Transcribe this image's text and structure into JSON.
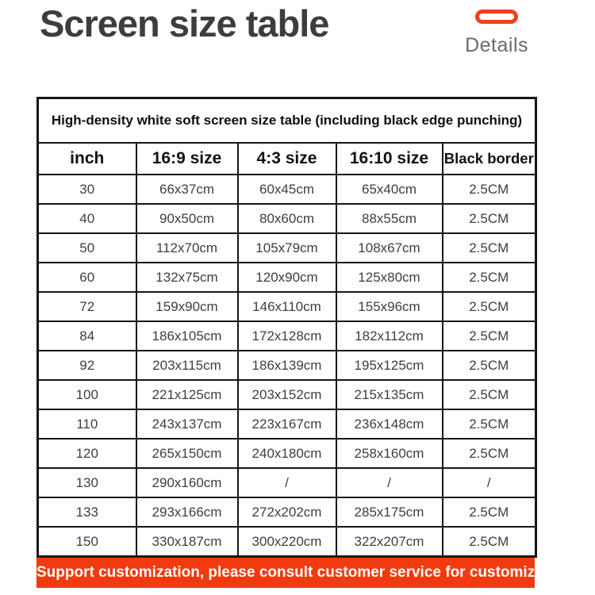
{
  "page": {
    "title": "Screen size table",
    "details_label": "Details"
  },
  "table": {
    "caption": "High-density white soft screen size table (including black edge punching)",
    "columns": [
      "inch",
      "16:9 size",
      "4:3 size",
      "16:10 size",
      "Black border"
    ],
    "rows": [
      [
        "30",
        "66x37cm",
        "60x45cm",
        "65x40cm",
        "2.5CM"
      ],
      [
        "40",
        "90x50cm",
        "80x60cm",
        "88x55cm",
        "2.5CM"
      ],
      [
        "50",
        "112x70cm",
        "105x79cm",
        "108x67cm",
        "2.5CM"
      ],
      [
        "60",
        "132x75cm",
        "120x90cm",
        "125x80cm",
        "2.5CM"
      ],
      [
        "72",
        "159x90cm",
        "146x110cm",
        "155x96cm",
        "2.5CM"
      ],
      [
        "84",
        "186x105cm",
        "172x128cm",
        "182x112cm",
        "2.5CM"
      ],
      [
        "92",
        "203x115cm",
        "186x139cm",
        "195x125cm",
        "2.5CM"
      ],
      [
        "100",
        "221x125cm",
        "203x152cm",
        "215x135cm",
        "2.5CM"
      ],
      [
        "110",
        "243x137cm",
        "223x167cm",
        "236x148cm",
        "2.5CM"
      ],
      [
        "120",
        "265x150cm",
        "240x180cm",
        "258x160cm",
        "2.5CM"
      ],
      [
        "130",
        "290x160cm",
        "/",
        "/",
        "/"
      ],
      [
        "133",
        "293x166cm",
        "272x202cm",
        "285x175cm",
        "2.5CM"
      ],
      [
        "150",
        "330x187cm",
        "300x220cm",
        "322x207cm",
        "2.5CM"
      ]
    ]
  },
  "banner": {
    "text": "Support customization, please consult customer service for customized size"
  },
  "colors": {
    "accent_orange_banner": "#f13a0f",
    "accent_orange_pill": "#ea431d",
    "title_gray": "#3d3d3d",
    "details_gray": "#6a6a6a",
    "table_border_black": "#161616"
  }
}
